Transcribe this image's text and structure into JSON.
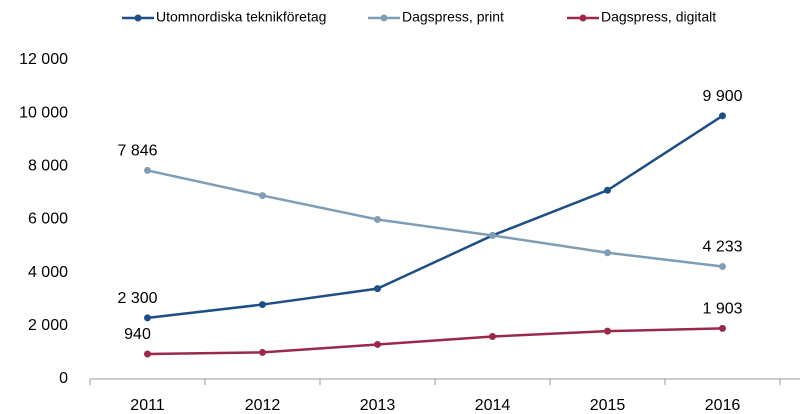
{
  "chart_data": {
    "type": "line",
    "categories": [
      "2011",
      "2012",
      "2013",
      "2014",
      "2015",
      "2016"
    ],
    "series": [
      {
        "name": "Utomnordiska teknikföretag",
        "color": "#1f4e86",
        "values": [
          2300,
          2800,
          3400,
          5400,
          7100,
          9900
        ],
        "value_labels": [
          "2 300",
          null,
          null,
          null,
          null,
          "9 900"
        ]
      },
      {
        "name": "Dagspress, print",
        "color": "#7f9db5",
        "values": [
          7846,
          6900,
          6000,
          5400,
          4750,
          4233
        ],
        "value_labels": [
          "7 846",
          null,
          null,
          null,
          null,
          "4 233"
        ]
      },
      {
        "name": "Dagspress, digitalt",
        "color": "#9b2a4a",
        "values": [
          940,
          1000,
          1300,
          1600,
          1800,
          1903
        ],
        "value_labels": [
          "940",
          null,
          null,
          null,
          null,
          "1 903"
        ]
      }
    ],
    "ylim": [
      0,
      12000
    ],
    "yticks": [
      0,
      {
        "value": 2000,
        "label": "2 000"
      },
      {
        "value": 4000,
        "label": "4 000"
      },
      {
        "value": 6000,
        "label": "6 000"
      },
      {
        "value": 8000,
        "label": "8 000"
      },
      {
        "value": 10000,
        "label": "10 000"
      },
      {
        "value": 12000,
        "label": "12 000"
      }
    ],
    "legend": "top"
  }
}
